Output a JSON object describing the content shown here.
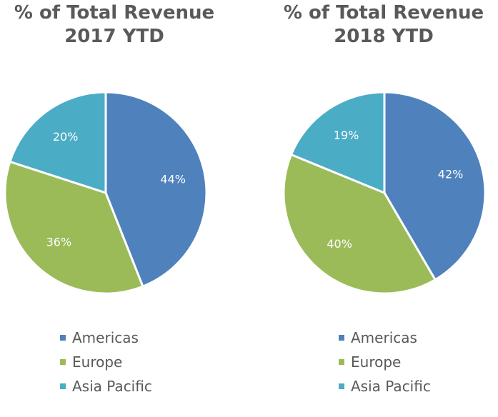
{
  "colors": {
    "americas": "#4f81bd",
    "europe": "#9bbb59",
    "asia_pacific": "#4bacc6",
    "title_text": "#595959"
  },
  "chart_data": [
    {
      "type": "pie",
      "title_line1": "% of Total Revenue",
      "title_line2": "2017 YTD",
      "legend_position": "bottom",
      "slices": [
        {
          "label": "Americas",
          "value": 44,
          "display": "44%",
          "color": "#4f81bd"
        },
        {
          "label": "Europe",
          "value": 36,
          "display": "36%",
          "color": "#9bbb59"
        },
        {
          "label": "Asia Pacific",
          "value": 20,
          "display": "20%",
          "color": "#4bacc6"
        }
      ]
    },
    {
      "type": "pie",
      "title_line1": "% of Total Revenue",
      "title_line2": "2018 YTD",
      "legend_position": "bottom",
      "slices": [
        {
          "label": "Americas",
          "value": 42,
          "display": "42%",
          "color": "#4f81bd"
        },
        {
          "label": "Europe",
          "value": 40,
          "display": "40%",
          "color": "#9bbb59"
        },
        {
          "label": "Asia Pacific",
          "value": 19,
          "display": "19%",
          "color": "#4bacc6"
        }
      ]
    }
  ]
}
